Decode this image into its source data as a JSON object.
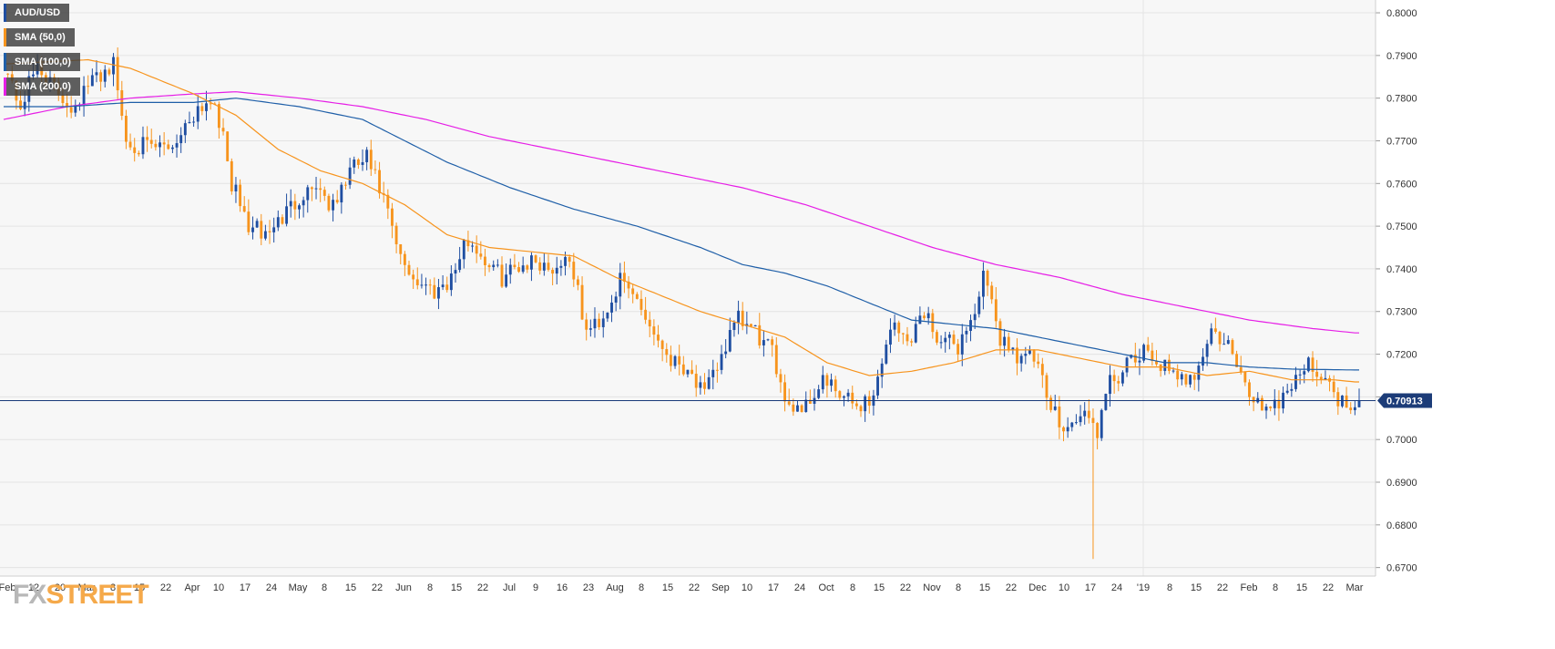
{
  "legend": [
    {
      "label": "AUD/USD",
      "color": "#1f4ea1"
    },
    {
      "label": "SMA (50,0)",
      "color": "#f7941d"
    },
    {
      "label": "SMA (100,0)",
      "color": "#1f5fa8"
    },
    {
      "label": "SMA (200,0)",
      "color": "#e61ee6"
    }
  ],
  "brand": {
    "fx": "FX",
    "street": "STREET"
  },
  "colors": {
    "bull": "#1f4ea1",
    "bear": "#f7941d",
    "sma50": "#f7941d",
    "sma100": "#1f5fa8",
    "sma200": "#e61ee6",
    "grid": "#e4e4e4",
    "current_line": "#1a3a7a",
    "background": "#f7f7f7"
  },
  "chart_data": {
    "type": "candlestick",
    "title": "",
    "symbol": "AUD/USD",
    "timeframe": "daily",
    "ylim": [
      0.668,
      0.803
    ],
    "y_ticks": [
      "0.8000",
      "0.7900",
      "0.7800",
      "0.7700",
      "0.7600",
      "0.7500",
      "0.7400",
      "0.7300",
      "0.7200",
      "0.7100",
      "0.7000",
      "0.6900",
      "0.6800",
      "0.6700"
    ],
    "x_ticks": [
      "Feb",
      "12",
      "20",
      "Mar",
      "8",
      "15",
      "22",
      "Apr",
      "10",
      "17",
      "24",
      "May",
      "8",
      "15",
      "22",
      "Jun",
      "8",
      "15",
      "22",
      "Jul",
      "9",
      "16",
      "23",
      "Aug",
      "8",
      "15",
      "22",
      "Sep",
      "10",
      "17",
      "24",
      "Oct",
      "8",
      "15",
      "22",
      "Nov",
      "8",
      "15",
      "22",
      "Dec",
      "10",
      "17",
      "24",
      "'19",
      "8",
      "15",
      "22",
      "Feb",
      "8",
      "15",
      "22",
      "Mar"
    ],
    "current_price": "0.70913",
    "current_value": 0.70913,
    "series_anchors": {
      "price": [
        [
          0,
          0.788
        ],
        [
          4,
          0.778
        ],
        [
          8,
          0.788
        ],
        [
          12,
          0.782
        ],
        [
          16,
          0.778
        ],
        [
          22,
          0.785
        ],
        [
          26,
          0.788
        ],
        [
          29,
          0.77
        ],
        [
          35,
          0.768
        ],
        [
          40,
          0.769
        ],
        [
          46,
          0.778
        ],
        [
          50,
          0.78
        ],
        [
          54,
          0.76
        ],
        [
          58,
          0.75
        ],
        [
          62,
          0.748
        ],
        [
          66,
          0.752
        ],
        [
          70,
          0.757
        ],
        [
          74,
          0.76
        ],
        [
          78,
          0.754
        ],
        [
          82,
          0.763
        ],
        [
          86,
          0.766
        ],
        [
          90,
          0.756
        ],
        [
          94,
          0.742
        ],
        [
          98,
          0.737
        ],
        [
          102,
          0.735
        ],
        [
          106,
          0.738
        ],
        [
          110,
          0.747
        ],
        [
          114,
          0.742
        ],
        [
          118,
          0.738
        ],
        [
          122,
          0.741
        ],
        [
          126,
          0.742
        ],
        [
          130,
          0.74
        ],
        [
          134,
          0.743
        ],
        [
          138,
          0.725
        ],
        [
          142,
          0.729
        ],
        [
          146,
          0.737
        ],
        [
          150,
          0.733
        ],
        [
          154,
          0.725
        ],
        [
          158,
          0.719
        ],
        [
          162,
          0.717
        ],
        [
          166,
          0.71
        ],
        [
          170,
          0.72
        ],
        [
          174,
          0.728
        ],
        [
          178,
          0.725
        ],
        [
          182,
          0.72
        ],
        [
          186,
          0.708
        ],
        [
          190,
          0.708
        ],
        [
          194,
          0.714
        ],
        [
          198,
          0.71
        ],
        [
          202,
          0.708
        ],
        [
          206,
          0.71
        ],
        [
          210,
          0.727
        ],
        [
          214,
          0.723
        ],
        [
          218,
          0.73
        ],
        [
          222,
          0.723
        ],
        [
          226,
          0.722
        ],
        [
          230,
          0.73
        ],
        [
          232,
          0.738
        ],
        [
          236,
          0.724
        ],
        [
          240,
          0.72
        ],
        [
          244,
          0.719
        ],
        [
          248,
          0.707
        ],
        [
          252,
          0.703
        ],
        [
          256,
          0.706
        ],
        [
          259,
          0.702
        ],
        [
          262,
          0.713
        ],
        [
          266,
          0.717
        ],
        [
          270,
          0.72
        ],
        [
          274,
          0.718
        ],
        [
          278,
          0.713
        ],
        [
          282,
          0.716
        ],
        [
          286,
          0.725
        ],
        [
          290,
          0.722
        ],
        [
          294,
          0.712
        ],
        [
          298,
          0.708
        ],
        [
          302,
          0.709
        ],
        [
          306,
          0.715
        ],
        [
          310,
          0.718
        ],
        [
          314,
          0.712
        ],
        [
          318,
          0.708
        ],
        [
          320,
          0.7091
        ]
      ],
      "sma50": [
        [
          0,
          0.788
        ],
        [
          20,
          0.789
        ],
        [
          30,
          0.787
        ],
        [
          45,
          0.781
        ],
        [
          55,
          0.776
        ],
        [
          65,
          0.768
        ],
        [
          75,
          0.763
        ],
        [
          85,
          0.76
        ],
        [
          95,
          0.755
        ],
        [
          105,
          0.748
        ],
        [
          115,
          0.745
        ],
        [
          125,
          0.744
        ],
        [
          135,
          0.743
        ],
        [
          145,
          0.738
        ],
        [
          155,
          0.734
        ],
        [
          165,
          0.73
        ],
        [
          175,
          0.727
        ],
        [
          185,
          0.724
        ],
        [
          195,
          0.718
        ],
        [
          205,
          0.715
        ],
        [
          215,
          0.716
        ],
        [
          225,
          0.718
        ],
        [
          235,
          0.721
        ],
        [
          245,
          0.721
        ],
        [
          255,
          0.719
        ],
        [
          265,
          0.717
        ],
        [
          275,
          0.717
        ],
        [
          285,
          0.715
        ],
        [
          295,
          0.716
        ],
        [
          305,
          0.714
        ],
        [
          315,
          0.714
        ],
        [
          320,
          0.7135
        ]
      ],
      "sma100": [
        [
          0,
          0.778
        ],
        [
          15,
          0.778
        ],
        [
          30,
          0.779
        ],
        [
          45,
          0.779
        ],
        [
          55,
          0.78
        ],
        [
          70,
          0.778
        ],
        [
          85,
          0.775
        ],
        [
          95,
          0.77
        ],
        [
          105,
          0.765
        ],
        [
          120,
          0.759
        ],
        [
          135,
          0.754
        ],
        [
          150,
          0.75
        ],
        [
          165,
          0.745
        ],
        [
          175,
          0.741
        ],
        [
          185,
          0.739
        ],
        [
          195,
          0.736
        ],
        [
          205,
          0.732
        ],
        [
          215,
          0.728
        ],
        [
          225,
          0.727
        ],
        [
          235,
          0.726
        ],
        [
          245,
          0.724
        ],
        [
          255,
          0.722
        ],
        [
          265,
          0.72
        ],
        [
          275,
          0.718
        ],
        [
          285,
          0.718
        ],
        [
          295,
          0.717
        ],
        [
          305,
          0.7165
        ],
        [
          320,
          0.7163
        ]
      ],
      "sma200": [
        [
          0,
          0.775
        ],
        [
          15,
          0.778
        ],
        [
          30,
          0.78
        ],
        [
          45,
          0.781
        ],
        [
          55,
          0.7815
        ],
        [
          70,
          0.78
        ],
        [
          85,
          0.778
        ],
        [
          100,
          0.775
        ],
        [
          115,
          0.771
        ],
        [
          130,
          0.768
        ],
        [
          145,
          0.765
        ],
        [
          160,
          0.762
        ],
        [
          175,
          0.759
        ],
        [
          190,
          0.755
        ],
        [
          205,
          0.75
        ],
        [
          220,
          0.745
        ],
        [
          235,
          0.741
        ],
        [
          250,
          0.738
        ],
        [
          265,
          0.734
        ],
        [
          280,
          0.731
        ],
        [
          295,
          0.728
        ],
        [
          310,
          0.726
        ],
        [
          320,
          0.725
        ]
      ],
      "flash_crash": {
        "day": 258,
        "low": 0.672
      }
    }
  }
}
